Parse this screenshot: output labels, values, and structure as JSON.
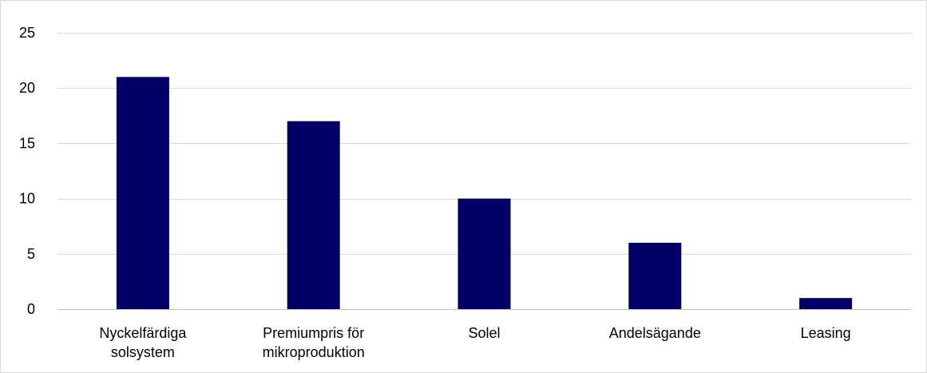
{
  "chart_data": {
    "type": "bar",
    "title": "",
    "xlabel": "",
    "ylabel": "",
    "categories": [
      [
        "Nyckelfärdiga",
        "solsystem"
      ],
      [
        "Premiumpris för",
        "mikroproduktion"
      ],
      [
        "Solel"
      ],
      [
        "Andelsägande"
      ],
      [
        "Leasing"
      ]
    ],
    "values": [
      21,
      17,
      10,
      6,
      1
    ],
    "ylim": [
      0,
      25
    ],
    "yticks": [
      0,
      5,
      10,
      15,
      20,
      25
    ],
    "ytick_labels": [
      "0",
      "5",
      "10",
      "15",
      "20",
      "25"
    ],
    "grid": true,
    "legend": "none",
    "colors": {
      "bar": "#000066",
      "gridline": "#d9d9d9",
      "axis": "#bfbfbf"
    }
  }
}
